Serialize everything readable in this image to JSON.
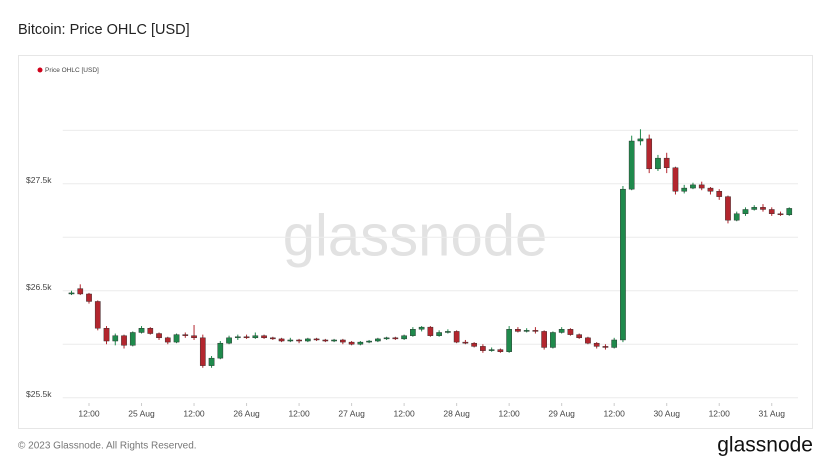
{
  "chart_data": {
    "type": "candlestick",
    "title": "Bitcoin: Price OHLC [USD]",
    "watermark": "glassnode",
    "series": [
      {
        "name": "Price OHLC [USD]",
        "color": "#d0021b",
        "up_color": "#1f8a4c",
        "down_color": "#b3262e",
        "x": [
          "24 Aug 08:00",
          "24 Aug 10:00",
          "24 Aug 12:00",
          "24 Aug 14:00",
          "24 Aug 16:00",
          "24 Aug 18:00",
          "24 Aug 20:00",
          "24 Aug 22:00",
          "25 Aug 00:00",
          "25 Aug 02:00",
          "25 Aug 04:00",
          "25 Aug 06:00",
          "25 Aug 08:00",
          "25 Aug 10:00",
          "25 Aug 12:00",
          "25 Aug 14:00",
          "25 Aug 16:00",
          "25 Aug 18:00",
          "25 Aug 20:00",
          "25 Aug 22:00",
          "26 Aug 00:00",
          "26 Aug 02:00",
          "26 Aug 04:00",
          "26 Aug 06:00",
          "26 Aug 08:00",
          "26 Aug 10:00",
          "26 Aug 12:00",
          "26 Aug 14:00",
          "26 Aug 16:00",
          "26 Aug 18:00",
          "26 Aug 20:00",
          "26 Aug 22:00",
          "27 Aug 00:00",
          "27 Aug 02:00",
          "27 Aug 04:00",
          "27 Aug 06:00",
          "27 Aug 08:00",
          "27 Aug 10:00",
          "27 Aug 12:00",
          "27 Aug 14:00",
          "27 Aug 16:00",
          "27 Aug 18:00",
          "27 Aug 20:00",
          "27 Aug 22:00",
          "28 Aug 00:00",
          "28 Aug 02:00",
          "28 Aug 04:00",
          "28 Aug 06:00",
          "28 Aug 08:00",
          "28 Aug 10:00",
          "28 Aug 12:00",
          "28 Aug 14:00",
          "28 Aug 16:00",
          "28 Aug 18:00",
          "28 Aug 20:00",
          "28 Aug 22:00",
          "29 Aug 00:00",
          "29 Aug 02:00",
          "29 Aug 04:00",
          "29 Aug 06:00",
          "29 Aug 08:00",
          "29 Aug 10:00",
          "29 Aug 12:00",
          "29 Aug 14:00",
          "29 Aug 16:00",
          "29 Aug 18:00",
          "29 Aug 20:00",
          "29 Aug 22:00",
          "30 Aug 00:00",
          "30 Aug 02:00",
          "30 Aug 04:00",
          "30 Aug 06:00",
          "30 Aug 08:00",
          "30 Aug 10:00",
          "30 Aug 12:00",
          "30 Aug 14:00",
          "30 Aug 16:00",
          "30 Aug 18:00",
          "30 Aug 20:00",
          "30 Aug 22:00",
          "31 Aug 00:00",
          "31 Aug 02:00",
          "31 Aug 04:00"
        ],
        "open": [
          26470,
          26520,
          26470,
          26400,
          26150,
          26030,
          26080,
          25990,
          26110,
          26150,
          26100,
          26060,
          26020,
          26090,
          26080,
          26060,
          25800,
          25870,
          26010,
          26060,
          26070,
          26060,
          26080,
          26060,
          26050,
          26030,
          26040,
          26030,
          26050,
          26040,
          26030,
          26040,
          26020,
          26000,
          26020,
          26030,
          26050,
          26060,
          26050,
          26080,
          26140,
          26160,
          26080,
          26110,
          26120,
          26020,
          26010,
          25980,
          25940,
          25950,
          25930,
          26140,
          26120,
          26130,
          26120,
          25970,
          26110,
          26140,
          26090,
          26060,
          26010,
          25980,
          25970,
          26040,
          27450,
          27900,
          27920,
          27640,
          27740,
          27650,
          27430,
          27460,
          27490,
          27460,
          27430,
          27380,
          27160,
          27220,
          27260,
          27280,
          27260,
          27220,
          27210
        ],
        "high": [
          26500,
          26560,
          26480,
          26410,
          26170,
          26100,
          26090,
          26120,
          26170,
          26160,
          26110,
          26070,
          26100,
          26110,
          26180,
          26090,
          25890,
          26030,
          26080,
          26090,
          26090,
          26110,
          26090,
          26070,
          26060,
          26060,
          26050,
          26060,
          26060,
          26050,
          26050,
          26050,
          26030,
          26030,
          26040,
          26060,
          26070,
          26070,
          26090,
          26160,
          26170,
          26170,
          26130,
          26140,
          26130,
          26040,
          26020,
          26000,
          25970,
          25960,
          26170,
          26160,
          26150,
          26160,
          26130,
          26120,
          26160,
          26150,
          26100,
          26070,
          26020,
          26000,
          26060,
          27480,
          27950,
          28010,
          27960,
          27770,
          27790,
          27660,
          27490,
          27510,
          27520,
          27470,
          27450,
          27390,
          27240,
          27280,
          27300,
          27310,
          27280,
          27240,
          27280
        ],
        "low": [
          26460,
          26460,
          26380,
          26130,
          26000,
          25990,
          25960,
          25980,
          26100,
          26090,
          26040,
          26000,
          26010,
          26060,
          26040,
          25780,
          25780,
          25860,
          26000,
          26040,
          26050,
          26050,
          26050,
          26040,
          26020,
          26020,
          26010,
          26020,
          26030,
          26020,
          26020,
          26000,
          25990,
          25990,
          26010,
          26020,
          26040,
          26040,
          26040,
          26070,
          26120,
          26070,
          26070,
          26100,
          26010,
          26000,
          25970,
          25920,
          25930,
          25920,
          25920,
          26110,
          26110,
          26100,
          25950,
          25960,
          26100,
          26080,
          26050,
          26000,
          25960,
          25950,
          25960,
          26020,
          27440,
          27860,
          27600,
          27620,
          27600,
          27400,
          27410,
          27450,
          27440,
          27400,
          27350,
          27130,
          27150,
          27200,
          27250,
          27240,
          27200,
          27200,
          27200
        ],
        "close": [
          26480,
          26470,
          26400,
          26150,
          26030,
          26080,
          25990,
          26110,
          26150,
          26100,
          26060,
          26020,
          26090,
          26080,
          26060,
          25800,
          25870,
          26010,
          26060,
          26070,
          26060,
          26080,
          26060,
          26050,
          26030,
          26040,
          26030,
          26050,
          26040,
          26030,
          26040,
          26020,
          26000,
          26020,
          26030,
          26050,
          26060,
          26050,
          26080,
          26140,
          26160,
          26080,
          26110,
          26120,
          26020,
          26010,
          25980,
          25940,
          25950,
          25930,
          26140,
          26120,
          26130,
          26120,
          25970,
          26110,
          26140,
          26090,
          26060,
          26010,
          25980,
          25970,
          26040,
          27450,
          27900,
          27920,
          27640,
          27740,
          27650,
          27430,
          27460,
          27490,
          27460,
          27430,
          27380,
          27160,
          27220,
          27260,
          27280,
          27260,
          27220,
          27210,
          27270
        ]
      }
    ],
    "xlim": [
      "24 Aug 06:00",
      "31 Aug 06:00"
    ],
    "xticks": [
      {
        "value": "24 Aug 12:00",
        "label": "12:00"
      },
      {
        "value": "25 Aug 00:00",
        "label": "25 Aug"
      },
      {
        "value": "25 Aug 12:00",
        "label": "12:00"
      },
      {
        "value": "26 Aug 00:00",
        "label": "26 Aug"
      },
      {
        "value": "26 Aug 12:00",
        "label": "12:00"
      },
      {
        "value": "27 Aug 00:00",
        "label": "27 Aug"
      },
      {
        "value": "27 Aug 12:00",
        "label": "12:00"
      },
      {
        "value": "28 Aug 00:00",
        "label": "28 Aug"
      },
      {
        "value": "28 Aug 12:00",
        "label": "12:00"
      },
      {
        "value": "29 Aug 00:00",
        "label": "29 Aug"
      },
      {
        "value": "29 Aug 12:00",
        "label": "12:00"
      },
      {
        "value": "30 Aug 00:00",
        "label": "30 Aug"
      },
      {
        "value": "30 Aug 12:00",
        "label": "12:00"
      },
      {
        "value": "31 Aug 00:00",
        "label": "31 Aug"
      }
    ],
    "ylim": [
      25460,
      28190
    ],
    "yticks": [
      {
        "value": 25500,
        "label": "$25.5k"
      },
      {
        "value": 26500,
        "label": "$26.5k"
      },
      {
        "value": 27500,
        "label": "$27.5k"
      }
    ],
    "yminor_grid": [
      26000,
      27000,
      28000
    ],
    "grid": true
  },
  "footer": {
    "copyright": "© 2023 Glassnode. All Rights Reserved.",
    "logo": "glassnode"
  }
}
